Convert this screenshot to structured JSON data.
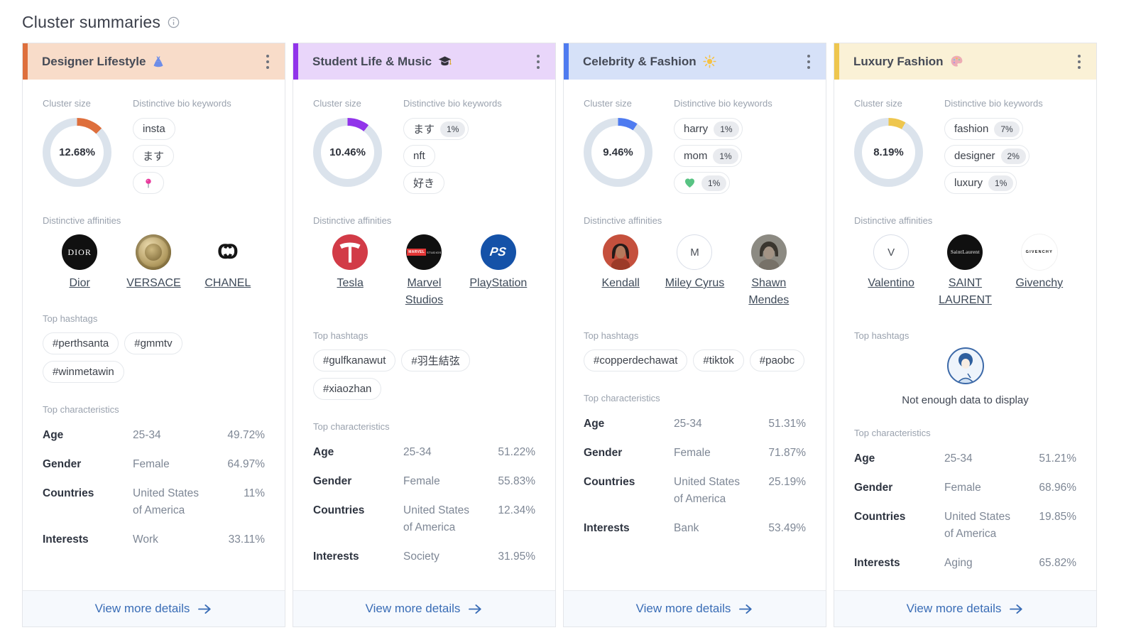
{
  "page": {
    "title": "Cluster summaries"
  },
  "labels": {
    "cluster_size": "Cluster size",
    "bio_keywords": "Distinctive bio keywords",
    "affinities": "Distinctive affinities",
    "hashtags": "Top hashtags",
    "characteristics": "Top characteristics",
    "view_more": "View more details",
    "no_data": "Not enough data to display"
  },
  "colors": {
    "donut_track": "#dbe3ec",
    "footer_link": "#3a6db6"
  },
  "cards": [
    {
      "title": "Designer Lifestyle",
      "icon": "dress-icon",
      "accent_color": "#de6f3c",
      "header_bg": "#f8dcc9",
      "cluster_size": {
        "value": "12.68%",
        "pct": 12.68
      },
      "bio_keywords": [
        {
          "label": "insta"
        },
        {
          "label": "ます"
        },
        {
          "icon": "round-pushpin-icon"
        }
      ],
      "affinities": [
        {
          "name": "Dior",
          "logo": "dior-logo",
          "logo_text": "DIOR"
        },
        {
          "name": "VERSACE",
          "logo": "versace-logo"
        },
        {
          "name": "CHANEL",
          "logo": "chanel-logo"
        }
      ],
      "hashtags": [
        "#perthsanta",
        "#gmmtv",
        "#winmetawin"
      ],
      "characteristics": [
        {
          "label": "Age",
          "value": "25-34",
          "pct": "49.72%"
        },
        {
          "label": "Gender",
          "value": "Female",
          "pct": "64.97%"
        },
        {
          "label": "Countries",
          "value": "United States of America",
          "pct": "11%"
        },
        {
          "label": "Interests",
          "value": "Work",
          "pct": "33.11%"
        }
      ]
    },
    {
      "title": "Student Life & Music",
      "icon": "graduation-cap-icon",
      "accent_color": "#9134ea",
      "header_bg": "#e9d6fa",
      "cluster_size": {
        "value": "10.46%",
        "pct": 10.46
      },
      "bio_keywords": [
        {
          "label": "ます",
          "pct": "1%"
        },
        {
          "label": "nft"
        },
        {
          "label": "好き"
        }
      ],
      "affinities": [
        {
          "name": "Tesla",
          "logo": "tesla-logo"
        },
        {
          "name": "Marvel Studios",
          "logo": "marvel-studios-logo",
          "logo_text": "MARVEL",
          "logo_subtext": "STUDIOS"
        },
        {
          "name": "PlayStation",
          "logo": "playstation-logo",
          "logo_text": "PS"
        }
      ],
      "hashtags": [
        "#gulfkanawut",
        "#羽生結弦",
        "#xiaozhan"
      ],
      "characteristics": [
        {
          "label": "Age",
          "value": "25-34",
          "pct": "51.22%"
        },
        {
          "label": "Gender",
          "value": "Female",
          "pct": "55.83%"
        },
        {
          "label": "Countries",
          "value": "United States of America",
          "pct": "12.34%"
        },
        {
          "label": "Interests",
          "value": "Society",
          "pct": "31.95%"
        }
      ]
    },
    {
      "title": "Celebrity & Fashion",
      "icon": "sun-icon",
      "accent_color": "#4e7bf0",
      "header_bg": "#d6e1f8",
      "cluster_size": {
        "value": "9.46%",
        "pct": 9.46
      },
      "bio_keywords": [
        {
          "label": "harry",
          "pct": "1%"
        },
        {
          "label": "mom",
          "pct": "1%"
        },
        {
          "icon": "green-heart-icon",
          "pct": "1%"
        }
      ],
      "affinities": [
        {
          "name": "Kendall",
          "logo": "kendall-avatar"
        },
        {
          "name": "Miley Cyrus",
          "logo": "miley-cyrus-avatar",
          "logo_text": "M"
        },
        {
          "name": "Shawn Mendes",
          "logo": "shawn-mendes-avatar"
        }
      ],
      "hashtags": [
        "#copperdechawat",
        "#tiktok",
        "#paobc"
      ],
      "characteristics": [
        {
          "label": "Age",
          "value": "25-34",
          "pct": "51.31%"
        },
        {
          "label": "Gender",
          "value": "Female",
          "pct": "71.87%"
        },
        {
          "label": "Countries",
          "value": "United States of America",
          "pct": "25.19%"
        },
        {
          "label": "Interests",
          "value": "Bank",
          "pct": "53.49%"
        }
      ]
    },
    {
      "title": "Luxury Fashion",
      "icon": "palette-icon",
      "accent_color": "#eec64e",
      "header_bg": "#faf1d6",
      "cluster_size": {
        "value": "8.19%",
        "pct": 8.19
      },
      "bio_keywords": [
        {
          "label": "fashion",
          "pct": "7%"
        },
        {
          "label": "designer",
          "pct": "2%"
        },
        {
          "label": "luxury",
          "pct": "1%"
        }
      ],
      "affinities": [
        {
          "name": "Valentino",
          "logo": "valentino-avatar",
          "logo_text": "V"
        },
        {
          "name": "SAINT LAURENT",
          "logo": "saint-laurent-logo",
          "logo_text": "SaintLaurent"
        },
        {
          "name": "Givenchy",
          "logo": "givenchy-logo",
          "logo_text": "GIVENCHY"
        }
      ],
      "hashtags": [],
      "characteristics": [
        {
          "label": "Age",
          "value": "25-34",
          "pct": "51.21%"
        },
        {
          "label": "Gender",
          "value": "Female",
          "pct": "68.96%"
        },
        {
          "label": "Countries",
          "value": "United States of America",
          "pct": "19.85%"
        },
        {
          "label": "Interests",
          "value": "Aging",
          "pct": "65.82%"
        }
      ]
    }
  ]
}
